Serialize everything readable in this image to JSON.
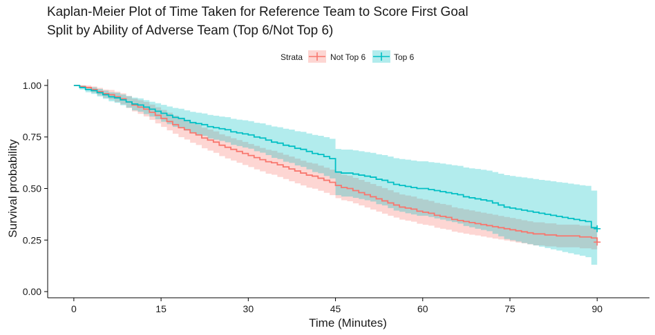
{
  "chart_data": {
    "type": "line",
    "title_line1": "Kaplan-Meier Plot of Time Taken for Reference Team to Score First Goal",
    "title_line2": "Split by Ability of Adverse Team (Top 6/Not Top 6)",
    "xlabel": "Time (Minutes)",
    "ylabel": "Survival probability",
    "xlim": [
      -4.5,
      99
    ],
    "ylim": [
      -0.03,
      1.03
    ],
    "x_ticks": [
      0,
      15,
      30,
      45,
      60,
      75,
      90
    ],
    "y_ticks": [
      0,
      0.25,
      0.5,
      0.75,
      1
    ],
    "x_tick_labels": [
      "0",
      "15",
      "30",
      "45",
      "60",
      "75",
      "90"
    ],
    "y_tick_labels": [
      "0.00",
      "0.25",
      "0.50",
      "0.75",
      "1.00"
    ],
    "legend_title": "Strata",
    "legend_position": "top",
    "grid": false,
    "series": [
      {
        "name": "Not Top 6",
        "color": "#F8766D",
        "fill": "#F8766D",
        "x": [
          0,
          1,
          2,
          3,
          4,
          5,
          6,
          7,
          8,
          9,
          10,
          11,
          12,
          13,
          14,
          15,
          16,
          17,
          18,
          19,
          20,
          21,
          22,
          23,
          24,
          25,
          26,
          27,
          28,
          29,
          30,
          31,
          32,
          33,
          34,
          35,
          36,
          37,
          38,
          39,
          40,
          41,
          42,
          43,
          44,
          45,
          46,
          47,
          48,
          49,
          50,
          51,
          52,
          53,
          54,
          55,
          56,
          57,
          58,
          59,
          60,
          61,
          62,
          63,
          64,
          65,
          66,
          67,
          68,
          69,
          70,
          71,
          72,
          73,
          74,
          75,
          76,
          77,
          78,
          79,
          80,
          81,
          82,
          83,
          84,
          85,
          86,
          87,
          88,
          89,
          90
        ],
        "y": [
          1.0,
          0.995,
          0.99,
          0.98,
          0.97,
          0.96,
          0.955,
          0.945,
          0.935,
          0.92,
          0.905,
          0.895,
          0.885,
          0.87,
          0.855,
          0.84,
          0.825,
          0.81,
          0.795,
          0.785,
          0.77,
          0.76,
          0.745,
          0.735,
          0.725,
          0.71,
          0.7,
          0.69,
          0.68,
          0.67,
          0.66,
          0.65,
          0.64,
          0.63,
          0.625,
          0.615,
          0.605,
          0.595,
          0.585,
          0.575,
          0.565,
          0.56,
          0.55,
          0.54,
          0.53,
          0.515,
          0.505,
          0.5,
          0.49,
          0.48,
          0.47,
          0.46,
          0.45,
          0.44,
          0.43,
          0.42,
          0.41,
          0.405,
          0.4,
          0.39,
          0.385,
          0.38,
          0.37,
          0.365,
          0.36,
          0.35,
          0.345,
          0.34,
          0.335,
          0.33,
          0.325,
          0.32,
          0.315,
          0.31,
          0.305,
          0.3,
          0.295,
          0.29,
          0.285,
          0.28,
          0.28,
          0.275,
          0.275,
          0.27,
          0.27,
          0.27,
          0.27,
          0.265,
          0.265,
          0.26,
          0.24
        ],
        "lower": [
          1.0,
          0.987,
          0.978,
          0.965,
          0.952,
          0.94,
          0.932,
          0.92,
          0.908,
          0.891,
          0.874,
          0.862,
          0.85,
          0.833,
          0.816,
          0.799,
          0.782,
          0.766,
          0.749,
          0.738,
          0.722,
          0.711,
          0.695,
          0.684,
          0.673,
          0.657,
          0.646,
          0.636,
          0.625,
          0.614,
          0.604,
          0.593,
          0.583,
          0.572,
          0.567,
          0.556,
          0.546,
          0.535,
          0.525,
          0.515,
          0.504,
          0.499,
          0.489,
          0.479,
          0.468,
          0.453,
          0.443,
          0.438,
          0.428,
          0.418,
          0.408,
          0.398,
          0.388,
          0.378,
          0.368,
          0.359,
          0.349,
          0.344,
          0.339,
          0.329,
          0.324,
          0.32,
          0.31,
          0.305,
          0.3,
          0.291,
          0.286,
          0.281,
          0.276,
          0.272,
          0.267,
          0.262,
          0.257,
          0.253,
          0.248,
          0.243,
          0.238,
          0.234,
          0.229,
          0.224,
          0.224,
          0.219,
          0.219,
          0.215,
          0.215,
          0.215,
          0.215,
          0.21,
          0.21,
          0.205,
          0.188
        ],
        "upper": [
          1.0,
          1.0,
          1.0,
          0.995,
          0.988,
          0.98,
          0.978,
          0.97,
          0.962,
          0.949,
          0.936,
          0.928,
          0.92,
          0.907,
          0.894,
          0.881,
          0.868,
          0.854,
          0.841,
          0.832,
          0.818,
          0.809,
          0.795,
          0.786,
          0.777,
          0.763,
          0.754,
          0.744,
          0.735,
          0.726,
          0.716,
          0.707,
          0.697,
          0.688,
          0.683,
          0.674,
          0.664,
          0.655,
          0.645,
          0.635,
          0.626,
          0.621,
          0.611,
          0.601,
          0.592,
          0.577,
          0.567,
          0.562,
          0.552,
          0.542,
          0.532,
          0.522,
          0.512,
          0.502,
          0.492,
          0.481,
          0.471,
          0.466,
          0.461,
          0.451,
          0.446,
          0.44,
          0.43,
          0.425,
          0.42,
          0.409,
          0.404,
          0.399,
          0.394,
          0.388,
          0.383,
          0.378,
          0.373,
          0.367,
          0.362,
          0.357,
          0.352,
          0.346,
          0.341,
          0.336,
          0.336,
          0.331,
          0.331,
          0.325,
          0.325,
          0.325,
          0.325,
          0.32,
          0.32,
          0.315,
          0.292
        ],
        "censor_marks": [
          [
            90,
            0.24
          ]
        ]
      },
      {
        "name": "Top 6",
        "color": "#00BFC4",
        "fill": "#00BFC4",
        "x": [
          0,
          1,
          2,
          3,
          4,
          5,
          6,
          7,
          8,
          9,
          10,
          11,
          12,
          13,
          14,
          15,
          16,
          17,
          18,
          19,
          20,
          21,
          22,
          23,
          24,
          25,
          26,
          27,
          28,
          29,
          30,
          31,
          32,
          33,
          34,
          35,
          36,
          37,
          38,
          39,
          40,
          41,
          42,
          43,
          44,
          45,
          46,
          47,
          48,
          49,
          50,
          51,
          52,
          53,
          54,
          55,
          56,
          57,
          58,
          59,
          60,
          61,
          62,
          63,
          64,
          65,
          66,
          67,
          68,
          69,
          70,
          71,
          72,
          73,
          74,
          75,
          76,
          77,
          78,
          79,
          80,
          81,
          82,
          83,
          84,
          85,
          86,
          87,
          88,
          89,
          90
        ],
        "y": [
          1.0,
          0.99,
          0.98,
          0.975,
          0.965,
          0.955,
          0.945,
          0.94,
          0.93,
          0.92,
          0.91,
          0.905,
          0.895,
          0.885,
          0.875,
          0.865,
          0.855,
          0.845,
          0.84,
          0.83,
          0.82,
          0.815,
          0.81,
          0.8,
          0.795,
          0.79,
          0.785,
          0.775,
          0.77,
          0.765,
          0.76,
          0.75,
          0.745,
          0.735,
          0.725,
          0.72,
          0.71,
          0.705,
          0.695,
          0.69,
          0.68,
          0.67,
          0.665,
          0.655,
          0.645,
          0.58,
          0.575,
          0.575,
          0.57,
          0.565,
          0.56,
          0.555,
          0.545,
          0.54,
          0.53,
          0.52,
          0.515,
          0.51,
          0.505,
          0.5,
          0.5,
          0.495,
          0.49,
          0.485,
          0.48,
          0.475,
          0.47,
          0.46,
          0.455,
          0.45,
          0.445,
          0.44,
          0.43,
          0.42,
          0.41,
          0.405,
          0.4,
          0.395,
          0.39,
          0.385,
          0.38,
          0.375,
          0.37,
          0.365,
          0.36,
          0.355,
          0.35,
          0.345,
          0.34,
          0.31,
          0.305
        ],
        "lower": [
          1.0,
          0.98,
          0.967,
          0.959,
          0.947,
          0.935,
          0.923,
          0.916,
          0.904,
          0.892,
          0.879,
          0.873,
          0.861,
          0.849,
          0.836,
          0.824,
          0.812,
          0.799,
          0.793,
          0.781,
          0.768,
          0.762,
          0.756,
          0.743,
          0.737,
          0.731,
          0.724,
          0.712,
          0.706,
          0.699,
          0.693,
          0.681,
          0.674,
          0.662,
          0.649,
          0.643,
          0.63,
          0.624,
          0.612,
          0.605,
          0.593,
          0.58,
          0.574,
          0.561,
          0.549,
          0.468,
          0.461,
          0.461,
          0.455,
          0.449,
          0.443,
          0.437,
          0.424,
          0.418,
          0.405,
          0.393,
          0.387,
          0.38,
          0.374,
          0.368,
          0.368,
          0.362,
          0.355,
          0.349,
          0.343,
          0.337,
          0.33,
          0.318,
          0.312,
          0.305,
          0.299,
          0.293,
          0.28,
          0.268,
          0.255,
          0.249,
          0.243,
          0.236,
          0.23,
          0.224,
          0.218,
          0.211,
          0.205,
          0.199,
          0.192,
          0.186,
          0.18,
          0.174,
          0.167,
          0.13,
          0.124
        ],
        "upper": [
          1.0,
          1.0,
          0.993,
          0.991,
          0.983,
          0.975,
          0.967,
          0.964,
          0.956,
          0.948,
          0.941,
          0.937,
          0.929,
          0.921,
          0.914,
          0.906,
          0.898,
          0.891,
          0.887,
          0.879,
          0.872,
          0.868,
          0.864,
          0.857,
          0.853,
          0.849,
          0.846,
          0.838,
          0.834,
          0.831,
          0.827,
          0.819,
          0.816,
          0.808,
          0.801,
          0.797,
          0.79,
          0.786,
          0.778,
          0.775,
          0.767,
          0.76,
          0.756,
          0.749,
          0.741,
          0.692,
          0.689,
          0.689,
          0.685,
          0.681,
          0.677,
          0.673,
          0.666,
          0.662,
          0.655,
          0.647,
          0.643,
          0.64,
          0.636,
          0.632,
          0.632,
          0.628,
          0.625,
          0.621,
          0.617,
          0.613,
          0.61,
          0.602,
          0.598,
          0.595,
          0.591,
          0.587,
          0.58,
          0.572,
          0.565,
          0.561,
          0.557,
          0.554,
          0.55,
          0.546,
          0.542,
          0.539,
          0.535,
          0.531,
          0.528,
          0.524,
          0.52,
          0.516,
          0.513,
          0.49,
          0.486
        ],
        "censor_marks": [
          [
            90,
            0.305
          ]
        ]
      }
    ]
  }
}
